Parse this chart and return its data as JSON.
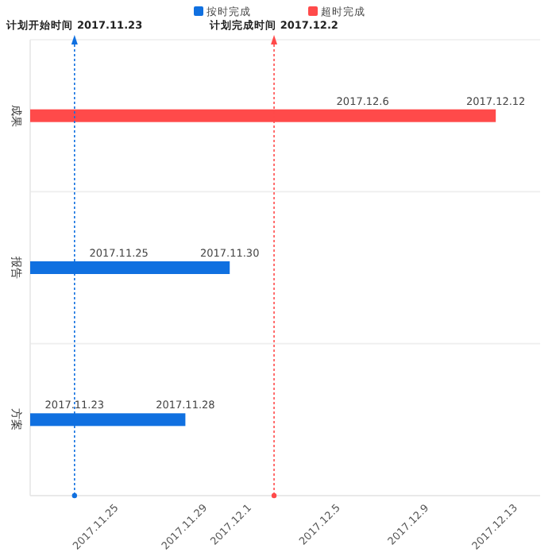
{
  "chart_data": {
    "type": "bar",
    "orientation": "horizontal",
    "categories": [
      "成果",
      "报告",
      "方案"
    ],
    "series": [
      {
        "name": "按时完成",
        "color": "#1070e0",
        "values": [
          null,
          17500,
          17498
        ],
        "value_labels": [
          null,
          "2017.11.30",
          "2017.11.28"
        ]
      },
      {
        "name": "超时完成",
        "color": "#ff4a4a",
        "values": [
          17512,
          null,
          null
        ],
        "value_labels": [
          "2017.12.12",
          null,
          null
        ]
      }
    ],
    "annotations": [
      {
        "text": "2017.12.6",
        "x": "2017-12-06",
        "y": "成果"
      },
      {
        "text": "2017.11.25",
        "x": "2017-11-25",
        "y": "报告"
      },
      {
        "text": "2017.11.23",
        "x": "2017-11-23",
        "y": "方案"
      }
    ],
    "xlim": [
      "2017-11-21",
      "2017-12-14"
    ],
    "xticks": [
      {
        "value": "2017-11-25",
        "label": "2017.11.25"
      },
      {
        "value": "2017-11-29",
        "label": "2017.11.29"
      },
      {
        "value": "2017-12-01",
        "label": "2017.12.1"
      },
      {
        "value": "2017-12-05",
        "label": "2017.12.5"
      },
      {
        "value": "2017-12-09",
        "label": "2017.12.9"
      },
      {
        "value": "2017-12-13",
        "label": "2017.12.13"
      }
    ],
    "ref_lines": [
      {
        "axis": "x",
        "value": "2017-11-23",
        "label": "计划开始时间 2017.11.23",
        "color": "#1070e0",
        "line_style": "dotted"
      },
      {
        "axis": "x",
        "value": "2017-12-02",
        "label": "计划完成时间 2017.12.2",
        "color": "#ff4a4a",
        "line_style": "dotted"
      }
    ],
    "grid": "y",
    "legend": "top"
  }
}
